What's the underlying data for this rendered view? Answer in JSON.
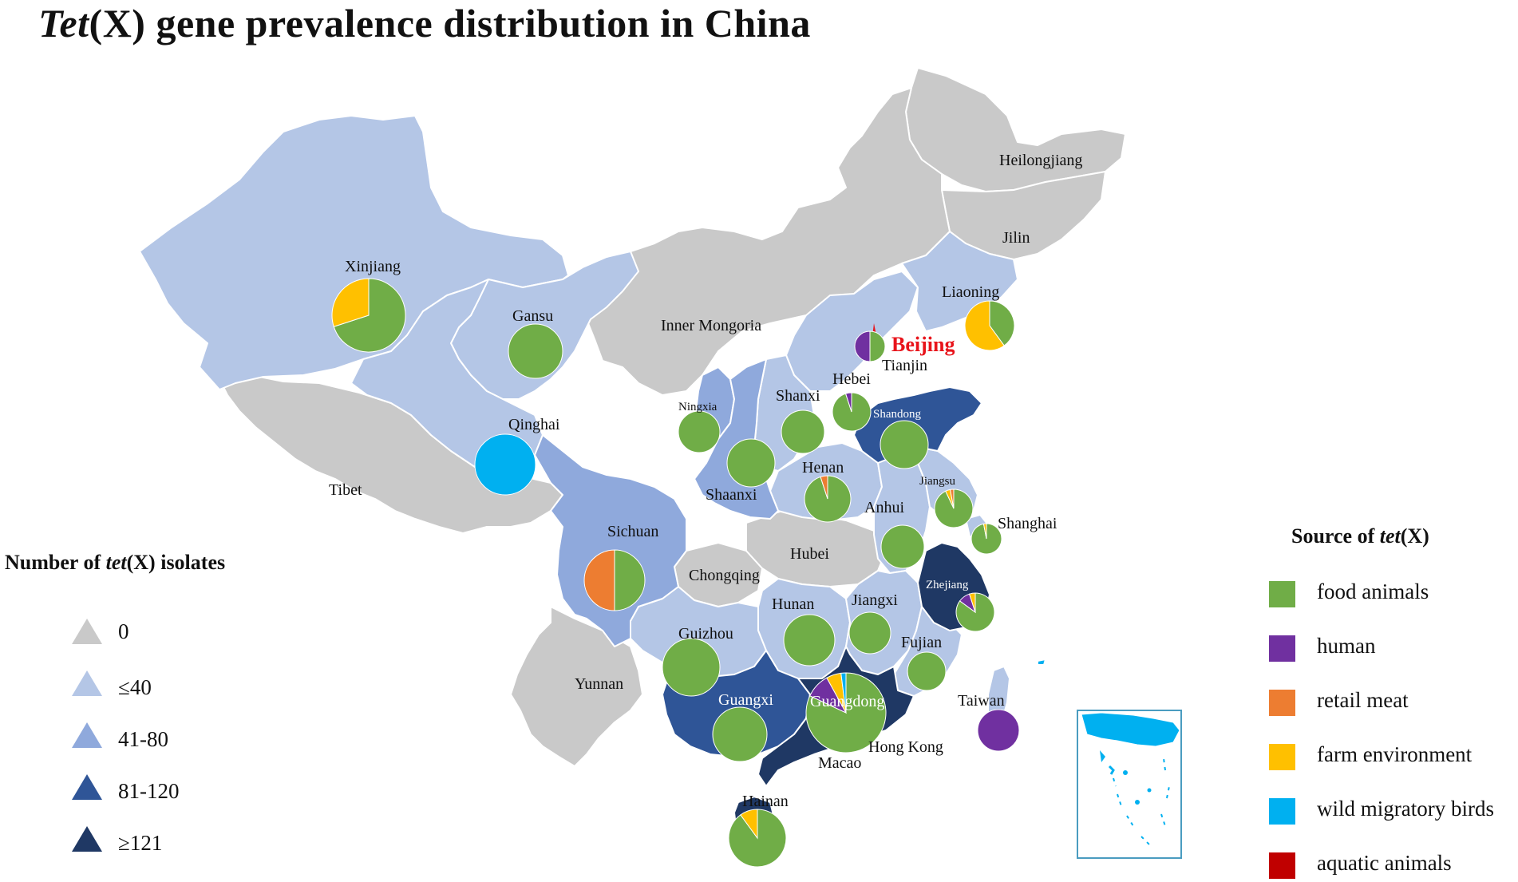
{
  "title": {
    "italic": "Tet",
    "rest": "(X) gene prevalence distribution in China"
  },
  "colors": {
    "count_0": "#c9c9c9",
    "count_le40": "#b4c6e6",
    "count_41_80": "#8fa9dc",
    "count_81_120": "#2f5597",
    "count_ge121": "#1f3864",
    "food_animals": "#70ad47",
    "human": "#7030a0",
    "retail_meat": "#ed7d31",
    "farm_environment": "#ffc000",
    "wild_migratory_birds": "#00b0f0",
    "aquatic_animals": "#c00000",
    "beijing": "#e8141b"
  },
  "isolates_legend": {
    "title_pre": "Number of ",
    "title_it": "tet",
    "title_post": "(X) isolates",
    "items": [
      {
        "label": "0",
        "color": "#c9c9c9"
      },
      {
        "label": "≤40",
        "color": "#b4c6e6"
      },
      {
        "label": "41-80",
        "color": "#8fa9dc"
      },
      {
        "label": "81-120",
        "color": "#2f5597"
      },
      {
        "label": "≥121",
        "color": "#1f3864"
      }
    ]
  },
  "source_legend": {
    "title_pre": "Source of ",
    "title_it": "tet",
    "title_post": "(X)",
    "items": [
      {
        "label": "food animals",
        "color": "#70ad47"
      },
      {
        "label": "human",
        "color": "#7030a0"
      },
      {
        "label": "retail meat",
        "color": "#ed7d31"
      },
      {
        "label": "farm environment",
        "color": "#ffc000"
      },
      {
        "label": "wild migratory birds",
        "color": "#00b0f0"
      },
      {
        "label": "aquatic animals",
        "color": "#c00000"
      }
    ]
  },
  "regions": {
    "heilongjiang": "Heilongjiang",
    "jilin": "Jilin",
    "liaoning": "Liaoning",
    "inner_mongolia": "Inner Mongoria",
    "xinjiang": "Xinjiang",
    "gansu": "Gansu",
    "qinghai": "Qinghai",
    "tibet": "Tibet",
    "ningxia": "Ningxia",
    "shanxi": "Shanxi",
    "shaanxi": "Shaanxi",
    "hebei": "Hebei",
    "beijing": "Beijing",
    "tianjin": "Tianjin",
    "shandong": "Shandong",
    "henan": "Henan",
    "jiangsu": "Jiangsu",
    "anhui": "Anhui",
    "shanghai": "Shanghai",
    "hubei": "Hubei",
    "sichuan": "Sichuan",
    "chongqing": "Chongqing",
    "zhejiang": "Zhejiang",
    "hunan": "Hunan",
    "jiangxi": "Jiangxi",
    "guizhou": "Guizhou",
    "fujian": "Fujian",
    "yunnan": "Yunnan",
    "guangxi": "Guangxi",
    "guangdong": "Guangdong",
    "taiwan": "Taiwan",
    "hong_kong": "Hong Kong",
    "macao": "Macao",
    "hainan": "Hainan"
  },
  "source_pies": [
    {
      "region": "Xinjiang",
      "slices": [
        {
          "source": "food animals",
          "value": 0.7
        },
        {
          "source": "farm environment",
          "value": 0.3
        }
      ]
    },
    {
      "region": "Gansu",
      "slices": [
        {
          "source": "food animals",
          "value": 1.0
        }
      ]
    },
    {
      "region": "Qinghai",
      "slices": [
        {
          "source": "wild migratory birds",
          "value": 1.0
        }
      ]
    },
    {
      "region": "Liaoning",
      "slices": [
        {
          "source": "food animals",
          "value": 0.4
        },
        {
          "source": "farm environment",
          "value": 0.6
        }
      ]
    },
    {
      "region": "Beijing",
      "slices": [
        {
          "source": "food animals",
          "value": 0.5
        },
        {
          "source": "human",
          "value": 0.5
        }
      ]
    },
    {
      "region": "Hebei",
      "slices": [
        {
          "source": "food animals",
          "value": 0.95
        },
        {
          "source": "human",
          "value": 0.05
        }
      ]
    },
    {
      "region": "Shanxi",
      "slices": [
        {
          "source": "food animals",
          "value": 1.0
        }
      ]
    },
    {
      "region": "Ningxia",
      "slices": [
        {
          "source": "food animals",
          "value": 1.0
        }
      ]
    },
    {
      "region": "Shaanxi",
      "slices": [
        {
          "source": "food animals",
          "value": 1.0
        }
      ]
    },
    {
      "region": "Shandong",
      "slices": [
        {
          "source": "food animals",
          "value": 1.0
        }
      ]
    },
    {
      "region": "Henan",
      "slices": [
        {
          "source": "food animals",
          "value": 0.95
        },
        {
          "source": "retail meat",
          "value": 0.05
        }
      ]
    },
    {
      "region": "Jiangsu",
      "slices": [
        {
          "source": "food animals",
          "value": 0.93
        },
        {
          "source": "farm environment",
          "value": 0.04
        },
        {
          "source": "retail meat",
          "value": 0.03
        }
      ]
    },
    {
      "region": "Anhui",
      "slices": [
        {
          "source": "food animals",
          "value": 1.0
        }
      ]
    },
    {
      "region": "Shanghai",
      "slices": [
        {
          "source": "food animals",
          "value": 0.97
        },
        {
          "source": "farm environment",
          "value": 0.03
        }
      ]
    },
    {
      "region": "Sichuan",
      "slices": [
        {
          "source": "food animals",
          "value": 0.5
        },
        {
          "source": "retail meat",
          "value": 0.5
        }
      ]
    },
    {
      "region": "Zhejiang",
      "slices": [
        {
          "source": "food animals",
          "value": 0.85
        },
        {
          "source": "human",
          "value": 0.1
        },
        {
          "source": "farm environment",
          "value": 0.05
        }
      ]
    },
    {
      "region": "Hunan",
      "slices": [
        {
          "source": "food animals",
          "value": 1.0
        }
      ]
    },
    {
      "region": "Jiangxi",
      "slices": [
        {
          "source": "food animals",
          "value": 1.0
        }
      ]
    },
    {
      "region": "Guizhou",
      "slices": [
        {
          "source": "food animals",
          "value": 1.0
        }
      ]
    },
    {
      "region": "Fujian",
      "slices": [
        {
          "source": "food animals",
          "value": 1.0
        }
      ]
    },
    {
      "region": "Guangxi",
      "slices": [
        {
          "source": "food animals",
          "value": 1.0
        }
      ]
    },
    {
      "region": "Guangdong",
      "slices": [
        {
          "source": "food animals",
          "value": 0.82
        },
        {
          "source": "human",
          "value": 0.1
        },
        {
          "source": "farm environment",
          "value": 0.06
        },
        {
          "source": "wild migratory birds",
          "value": 0.02
        }
      ]
    },
    {
      "region": "Taiwan",
      "slices": [
        {
          "source": "human",
          "value": 1.0
        }
      ]
    },
    {
      "region": "Hainan",
      "slices": [
        {
          "source": "food animals",
          "value": 0.9
        },
        {
          "source": "farm environment",
          "value": 0.1
        }
      ]
    }
  ]
}
